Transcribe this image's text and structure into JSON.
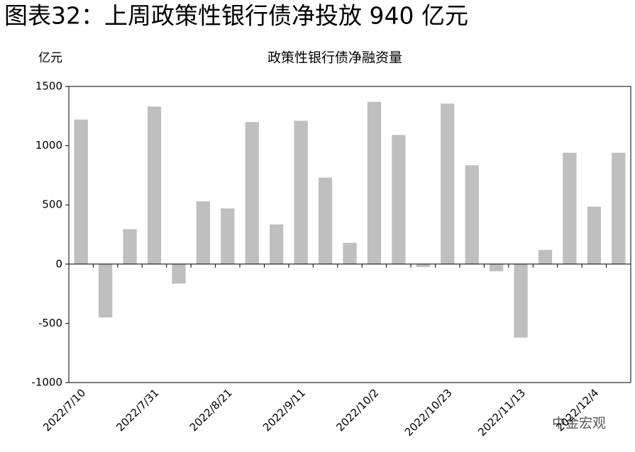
{
  "chart_data": {
    "type": "bar",
    "title": "图表32：上周政策性银行债净投放 940 亿元",
    "subtitle": "政策性银行债净融资量",
    "unit": "亿元",
    "watermark": "中金宏观",
    "categories": [
      "2022/7/10",
      null,
      null,
      "2022/7/31",
      null,
      null,
      "2022/8/21",
      null,
      null,
      "2022/9/11",
      null,
      null,
      "2022/10/2",
      null,
      null,
      "2022/10/23",
      null,
      null,
      "2022/11/13",
      null,
      null,
      "2022/12/4",
      null
    ],
    "values": [
      1220,
      -450,
      295,
      1330,
      -165,
      530,
      470,
      1200,
      335,
      1210,
      730,
      180,
      1370,
      1090,
      -25,
      1355,
      835,
      -60,
      -620,
      120,
      940,
      485,
      940
    ],
    "color": "#bfbfbf",
    "ylim": [
      -1000,
      1500
    ],
    "yticks": [
      -1000,
      -500,
      0,
      500,
      1000,
      1500
    ]
  }
}
